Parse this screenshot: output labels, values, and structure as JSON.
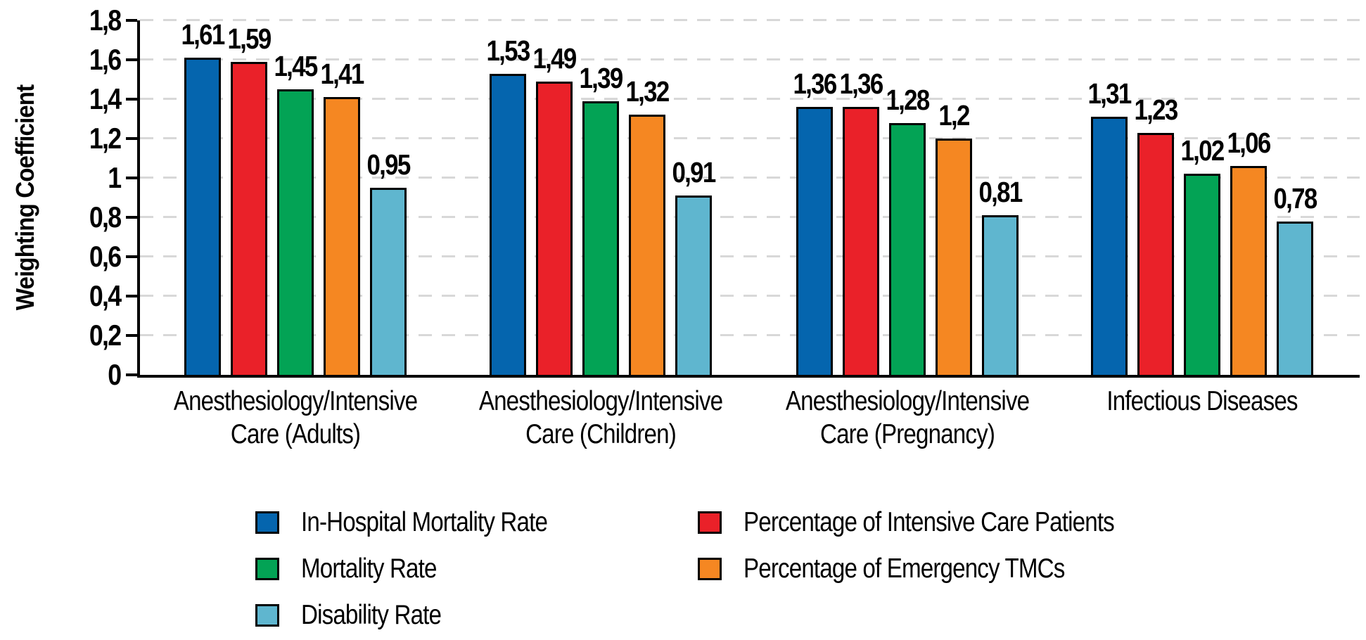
{
  "chart_data": {
    "type": "bar",
    "title": "",
    "ylabel": "Weighting Coefficient",
    "xlabel": "",
    "ylim": [
      0,
      1.8
    ],
    "grid": "horizontal-dashed",
    "gridline_color": "#d8d8d8",
    "axis_color": "#000000",
    "decimal_separator": ",",
    "yticks": [
      {
        "value": 0,
        "label": "0"
      },
      {
        "value": 0.2,
        "label": "0,2"
      },
      {
        "value": 0.4,
        "label": "0,4"
      },
      {
        "value": 0.6,
        "label": "0,6"
      },
      {
        "value": 0.8,
        "label": "0,8"
      },
      {
        "value": 1,
        "label": "1"
      },
      {
        "value": 1.2,
        "label": "1,2"
      },
      {
        "value": 1.4,
        "label": "1,4"
      },
      {
        "value": 1.6,
        "label": "1,6"
      },
      {
        "value": 1.8,
        "label": "1,8"
      }
    ],
    "categories": [
      {
        "label_lines": [
          "Anesthesiology/Intensive",
          "Care (Adults)"
        ]
      },
      {
        "label_lines": [
          "Anesthesiology/Intensive",
          "Care (Children)"
        ]
      },
      {
        "label_lines": [
          "Anesthesiology/Intensive",
          "Care (Pregnancy)"
        ]
      },
      {
        "label_lines": [
          "Infectious Diseases"
        ]
      }
    ],
    "series": [
      {
        "name": "In-Hospital Mortality Rate",
        "color": "#0565ae",
        "values": [
          1.61,
          1.53,
          1.36,
          1.31
        ],
        "value_labels": [
          "1,61",
          "1,53",
          "1,36",
          "1,31"
        ]
      },
      {
        "name": "Percentage of Intensive Care Patients",
        "color": "#ea2129",
        "values": [
          1.59,
          1.49,
          1.36,
          1.23
        ],
        "value_labels": [
          "1,59",
          "1,49",
          "1,36",
          "1,23"
        ]
      },
      {
        "name": "Mortality Rate",
        "color": "#03a355",
        "values": [
          1.45,
          1.39,
          1.28,
          1.02
        ],
        "value_labels": [
          "1,45",
          "1,39",
          "1,28",
          "1,02"
        ]
      },
      {
        "name": "Percentage of Emergency TMCs",
        "color": "#f58722",
        "values": [
          1.41,
          1.32,
          1.2,
          1.06
        ],
        "value_labels": [
          "1,41",
          "1,32",
          "1,2",
          "1,06"
        ]
      },
      {
        "name": "Disability Rate",
        "color": "#5fb6cf",
        "values": [
          0.95,
          0.91,
          0.81,
          0.78
        ],
        "value_labels": [
          "0,95",
          "0,91",
          "0,81",
          "0,78"
        ]
      }
    ],
    "legend": {
      "position": "bottom",
      "columns": [
        {
          "entries": [
            0,
            2,
            4
          ]
        },
        {
          "entries": [
            1,
            3
          ]
        }
      ]
    }
  }
}
